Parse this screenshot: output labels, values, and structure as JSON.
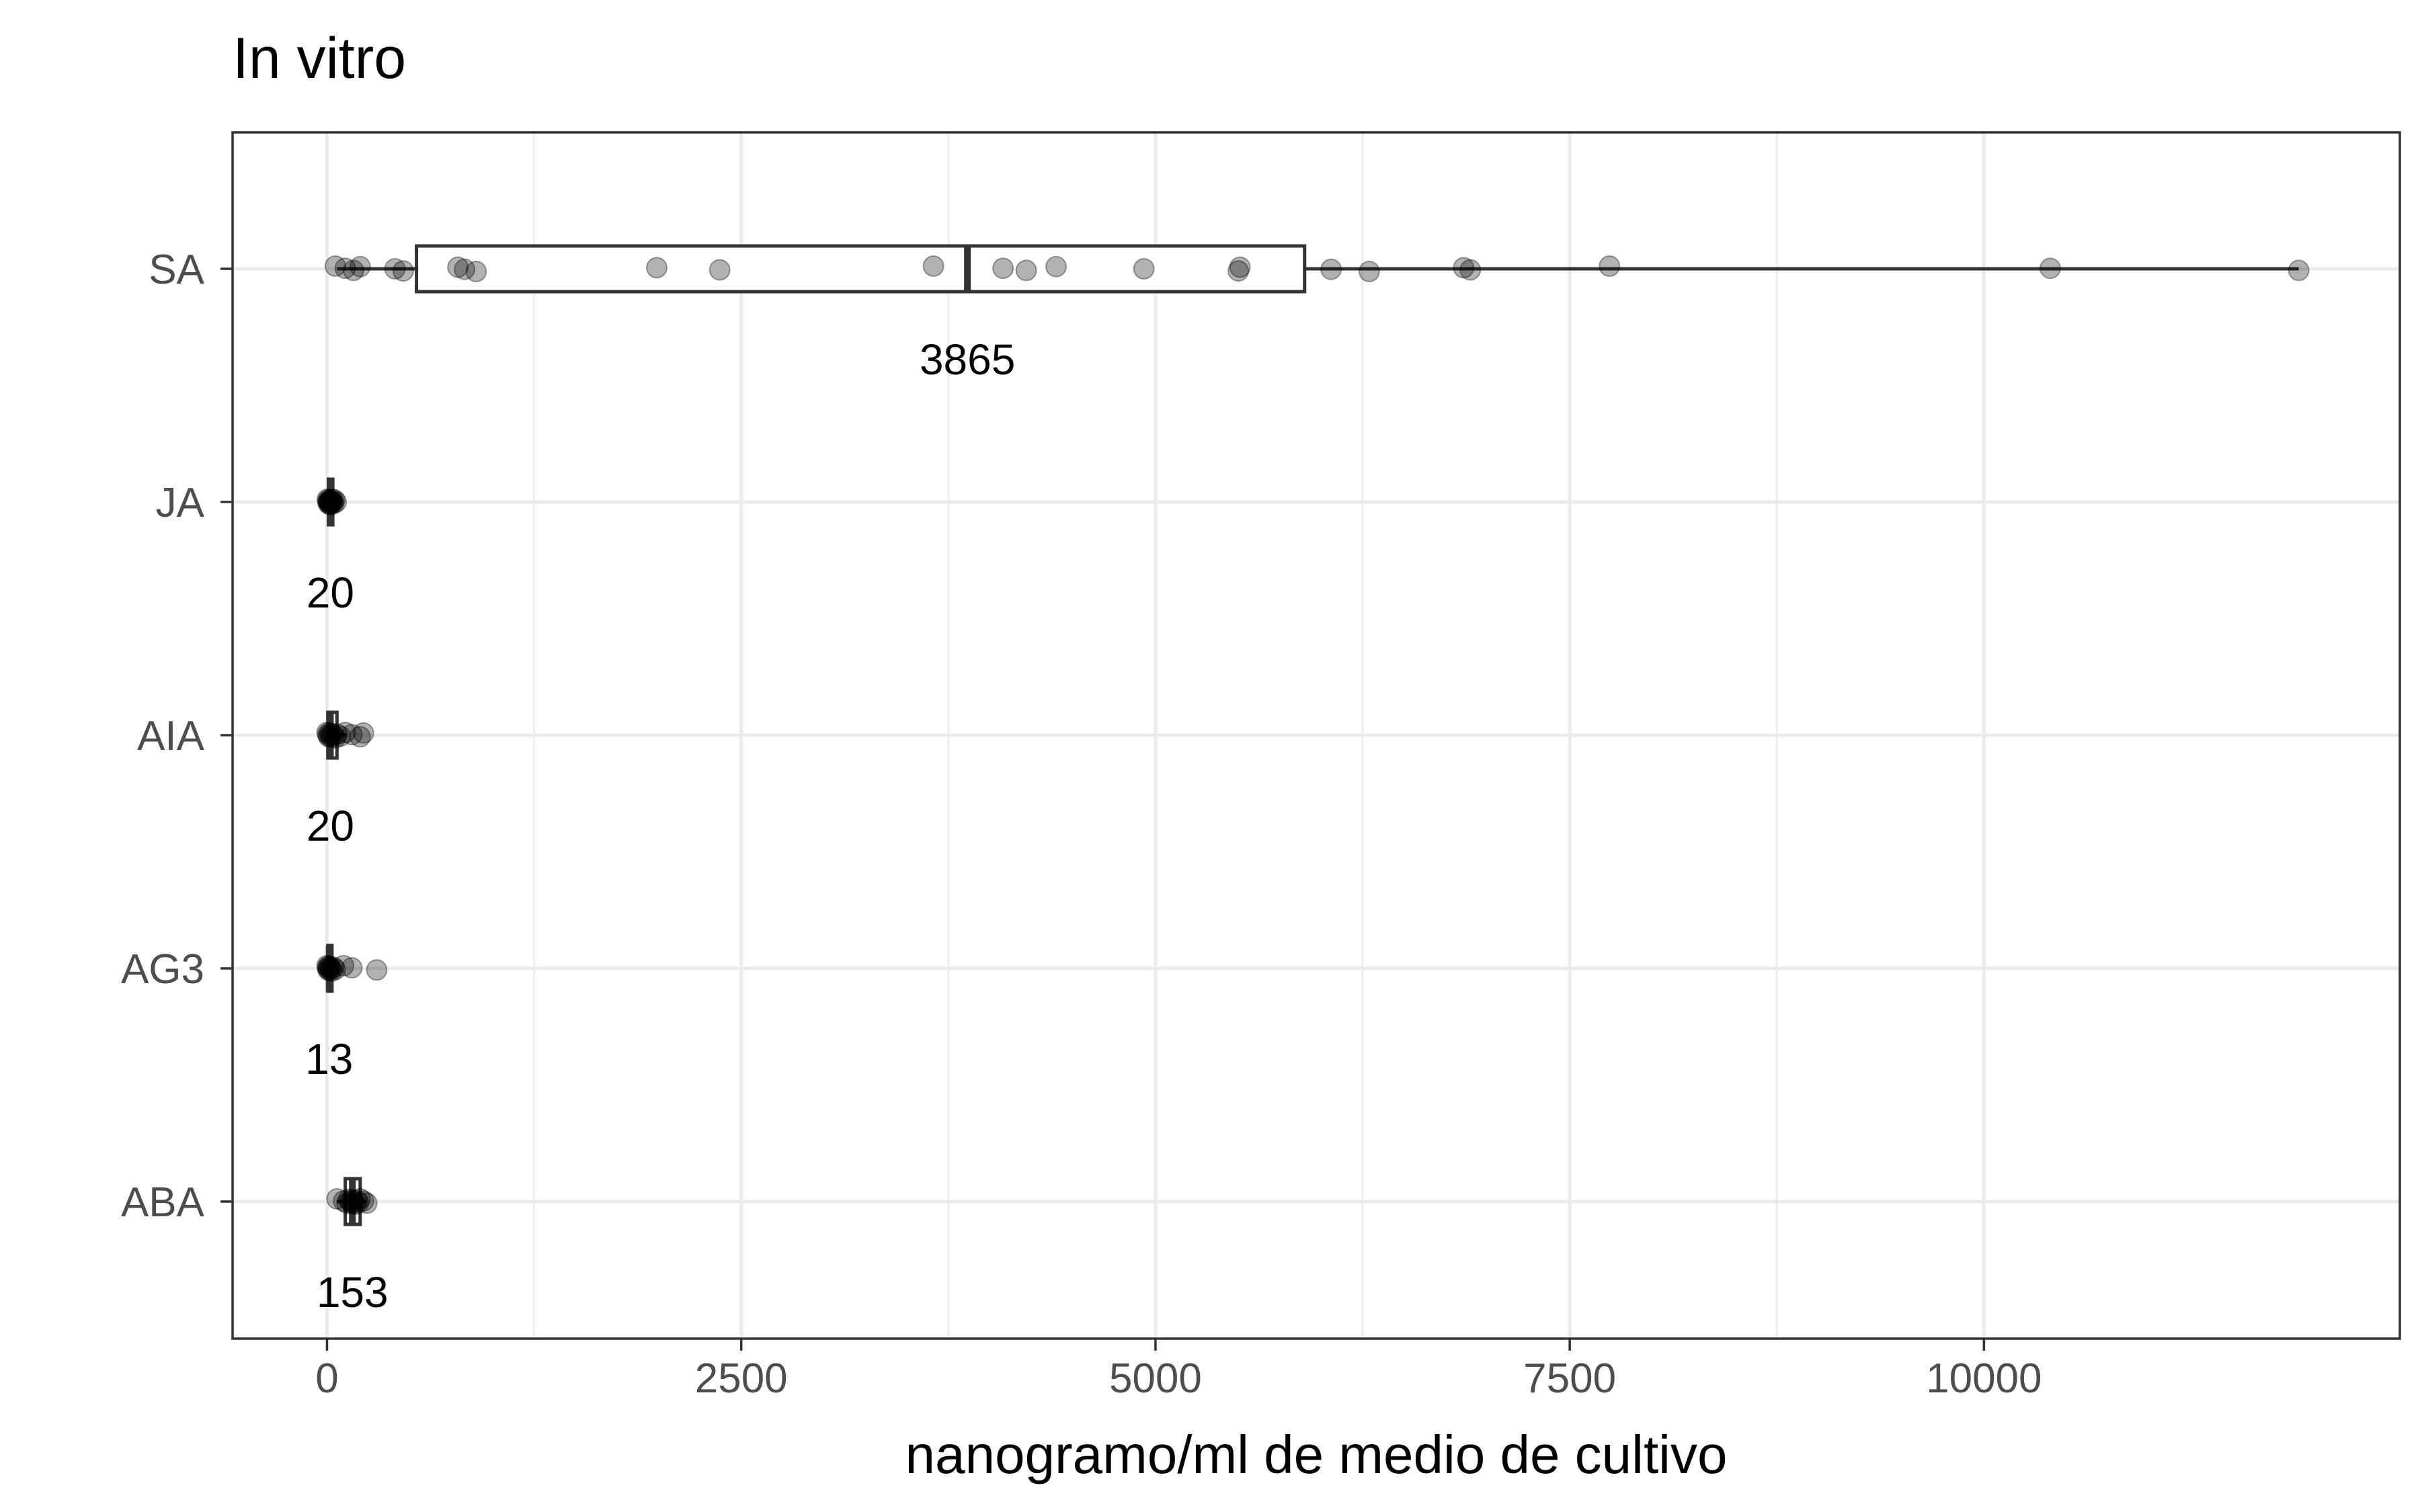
{
  "chart_data": {
    "type": "boxplot",
    "title": "In vitro",
    "xlabel": "nanogramo/ml de medio de cultivo",
    "ylabel": "",
    "xlim": [
      -570,
      12510
    ],
    "x_ticks": [
      0,
      2500,
      5000,
      7500,
      10000
    ],
    "x_tick_labels": [
      "0",
      "2500",
      "5000",
      "7500",
      "10000"
    ],
    "categories": [
      "SA",
      "JA",
      "AIA",
      "AG3",
      "ABA"
    ],
    "grid": true,
    "legend": "none",
    "colors": {
      "box_stroke": "#333333",
      "point_fill": "#000000",
      "grid": "#ebebeb",
      "panel_border": "#333333"
    },
    "groups": [
      {
        "category": "SA",
        "median": 3865,
        "median_label": "3865",
        "q1": 540,
        "q3": 5900,
        "whisker_low": 60,
        "whisker_high": 11900,
        "points": [
          50,
          110,
          160,
          200,
          410,
          460,
          790,
          830,
          900,
          1990,
          2370,
          3660,
          4080,
          4220,
          4400,
          4930,
          5500,
          5510,
          6060,
          6290,
          6860,
          6900,
          7740,
          10400,
          11900
        ]
      },
      {
        "category": "JA",
        "median": 20,
        "median_label": "20",
        "q1": 8,
        "q3": 35,
        "whisker_low": 2,
        "whisker_high": 60,
        "points": [
          2,
          5,
          8,
          10,
          12,
          15,
          18,
          20,
          22,
          25,
          28,
          30,
          35,
          40,
          45,
          55
        ]
      },
      {
        "category": "AIA",
        "median": 20,
        "median_label": "20",
        "q1": 5,
        "q3": 60,
        "whisker_low": 0,
        "whisker_high": 120,
        "points": [
          0,
          5,
          10,
          15,
          20,
          25,
          30,
          40,
          50,
          60,
          80,
          110,
          150,
          200,
          220
        ]
      },
      {
        "category": "AG3",
        "median": 13,
        "median_label": "13",
        "q1": 5,
        "q3": 30,
        "whisker_low": 0,
        "whisker_high": 60,
        "points": [
          0,
          3,
          6,
          10,
          13,
          16,
          20,
          25,
          30,
          40,
          50,
          100,
          150,
          300
        ]
      },
      {
        "category": "ABA",
        "median": 153,
        "median_label": "153",
        "q1": 110,
        "q3": 200,
        "whisker_low": 60,
        "whisker_high": 240,
        "points": [
          60,
          100,
          120,
          130,
          140,
          150,
          155,
          160,
          170,
          180,
          190,
          200,
          220,
          240
        ]
      }
    ]
  }
}
